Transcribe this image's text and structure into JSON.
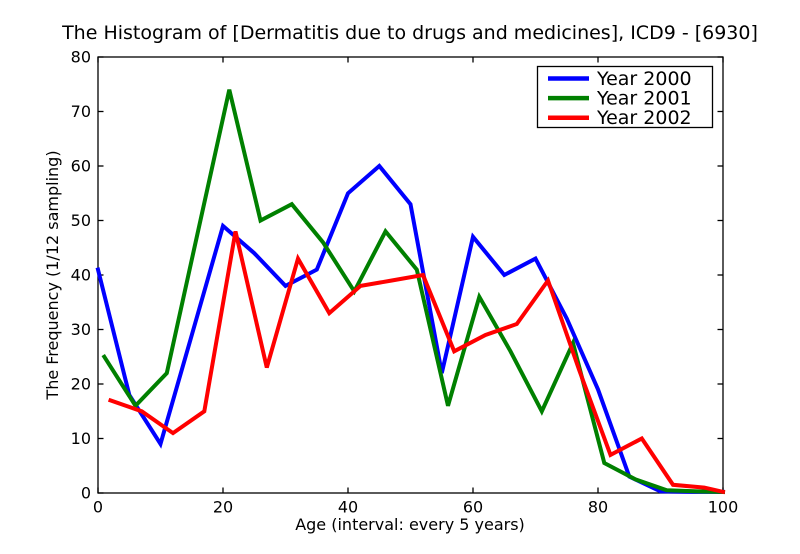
{
  "chart_data": {
    "type": "line",
    "title": "The Histogram of [Dermatitis due to drugs and medicines], ICD9 - [6930]",
    "xlabel": "Age (interval: every 5 years)",
    "ylabel": "The Frequency (1/12 sampling)",
    "xlim": [
      0,
      100
    ],
    "ylim": [
      0,
      80
    ],
    "xticks": [
      0,
      20,
      40,
      60,
      80,
      100
    ],
    "yticks": [
      0,
      10,
      20,
      30,
      40,
      50,
      60,
      70,
      80
    ],
    "grid": false,
    "legend_position": "upper right",
    "background_color": "#ffffff",
    "axis_color": "#000000",
    "series": [
      {
        "name": "Year 2000",
        "color": "#0000ff",
        "x": [
          0,
          5,
          10,
          15,
          20,
          25,
          30,
          35,
          40,
          45,
          50,
          55,
          60,
          65,
          70,
          75,
          80,
          85,
          90,
          95,
          100
        ],
        "y": [
          41,
          18,
          9,
          29,
          49,
          44,
          38,
          41,
          55,
          60,
          53,
          22,
          47,
          40,
          43,
          32,
          19,
          3,
          0.3,
          0.2,
          0.2
        ]
      },
      {
        "name": "Year 2001",
        "color": "#008000",
        "x": [
          1,
          6,
          11,
          16,
          21,
          26,
          31,
          36,
          41,
          46,
          51,
          56,
          61,
          66,
          71,
          76,
          81,
          86,
          91,
          96,
          100
        ],
        "y": [
          25,
          16,
          22,
          48,
          74,
          50,
          53,
          46,
          37,
          48,
          41,
          16,
          36,
          26,
          15,
          27.5,
          5.5,
          2.5,
          0.5,
          0.3,
          0.2
        ]
      },
      {
        "name": "Year 2002",
        "color": "#ff0000",
        "x": [
          2,
          7,
          12,
          17,
          22,
          27,
          32,
          37,
          42,
          47,
          52,
          57,
          62,
          67,
          72,
          77,
          82,
          87,
          92,
          97,
          100
        ],
        "y": [
          17,
          15,
          11,
          15,
          48,
          23,
          43,
          33,
          38,
          39,
          40,
          26,
          29,
          31,
          39,
          22.5,
          7,
          10,
          1.5,
          1,
          0.2
        ]
      }
    ]
  }
}
